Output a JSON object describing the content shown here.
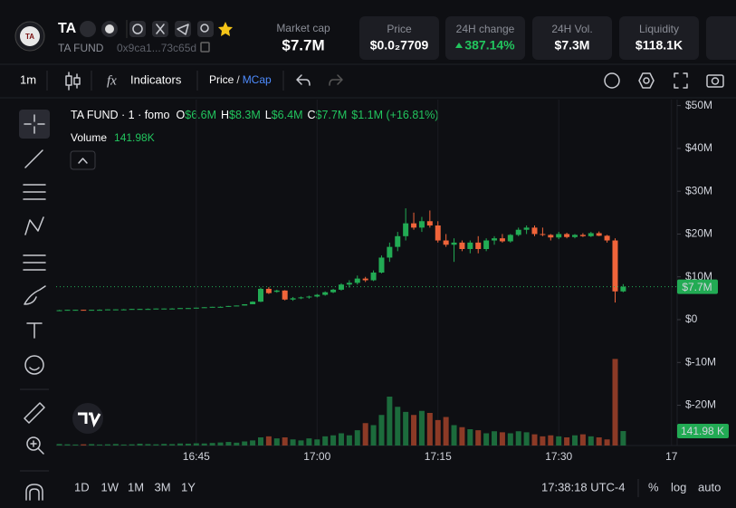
{
  "header": {
    "symbol": "TA",
    "name": "TA FUND",
    "address": "0x9ca1...73c65d"
  },
  "stats": [
    {
      "label": "Market cap",
      "value": "$7.7M"
    },
    {
      "label": "Price",
      "value": "$0.0₂7709"
    },
    {
      "label": "24H change",
      "value": "387.14%"
    },
    {
      "label": "24H Vol.",
      "value": "$7.3M"
    },
    {
      "label": "Liquidity",
      "value": "$118.1K"
    }
  ],
  "toolbar": {
    "interval": "1m",
    "indicators": "Indicators",
    "price": "Price",
    "separator": "/",
    "mcap": "MCap"
  },
  "legend": {
    "title": "TA FUND · 1 · fomo",
    "ohlc": [
      {
        "key": "O",
        "value": "$6.6M"
      },
      {
        "key": "H",
        "value": "$8.3M"
      },
      {
        "key": "L",
        "value": "$6.4M"
      },
      {
        "key": "C",
        "value": "$7.7M"
      }
    ],
    "change": "$1.1M (+16.81%)",
    "volume_label": "Volume",
    "volume_value": "141.98K"
  },
  "bottom_bar": {
    "ranges": [
      "1D",
      "1W",
      "1M",
      "3M",
      "1Y"
    ],
    "clock": "17:38:18 UTC-4",
    "percent": "%",
    "log": "log",
    "auto": "auto"
  },
  "chart_data": {
    "type": "candlestick",
    "x": [
      28,
      29,
      30,
      31,
      32,
      33,
      34,
      35,
      36,
      37,
      38,
      39,
      40,
      41,
      42,
      43,
      44,
      45,
      46,
      47,
      48,
      49,
      50,
      51,
      52,
      53,
      54,
      55,
      56,
      57,
      58,
      59,
      60,
      61,
      62,
      63,
      64,
      65,
      66,
      67,
      68,
      69,
      70,
      71,
      72,
      73,
      74,
      75,
      76,
      77,
      78,
      79,
      80,
      81,
      82,
      83,
      84,
      85,
      86,
      87,
      88,
      89,
      90,
      91,
      92,
      93,
      94,
      95,
      96,
      97,
      98
    ],
    "open": [
      2.2,
      2.2,
      2.3,
      2.3,
      2.2,
      2.3,
      2.3,
      2.4,
      2.4,
      2.4,
      2.5,
      2.5,
      2.5,
      2.6,
      2.6,
      2.6,
      2.7,
      2.7,
      2.8,
      2.9,
      3.0,
      3.0,
      3.2,
      3.3,
      3.6,
      4.2,
      7.2,
      6.5,
      6.8,
      4.7,
      5.0,
      5.2,
      5.4,
      5.8,
      6.4,
      7.0,
      8.2,
      8.6,
      9.6,
      9.2,
      11.0,
      14.5,
      17.0,
      19.5,
      22.5,
      21.5,
      23.0,
      22.0,
      18.5,
      17.5,
      18.0,
      16.5,
      18.0,
      16.5,
      18.5,
      19.0,
      18.3,
      19.8,
      21.0,
      21.5,
      20.0,
      19.8,
      19.2,
      20.0,
      19.3,
      19.8,
      19.5,
      20.2,
      19.6,
      18.5,
      6.6
    ],
    "high": [
      2.3,
      2.3,
      2.3,
      2.3,
      2.3,
      2.4,
      2.4,
      2.4,
      2.5,
      2.5,
      2.5,
      2.6,
      2.6,
      2.6,
      2.7,
      2.7,
      2.7,
      2.8,
      2.9,
      3.0,
      3.1,
      3.2,
      3.3,
      3.6,
      4.3,
      7.5,
      7.6,
      7.0,
      6.9,
      5.3,
      5.4,
      5.6,
      6.0,
      6.6,
      7.2,
      8.5,
      9.2,
      10.3,
      10.0,
      11.5,
      15.0,
      18.0,
      20.5,
      26.0,
      25.0,
      24.0,
      25.5,
      23.0,
      20.0,
      19.0,
      18.5,
      18.5,
      19.5,
      19.0,
      19.5,
      20.0,
      20.0,
      21.5,
      22.0,
      22.0,
      21.5,
      20.0,
      20.5,
      20.3,
      20.0,
      20.2,
      20.5,
      20.6,
      19.8,
      19.0,
      8.3
    ],
    "low": [
      2.2,
      2.2,
      2.2,
      2.2,
      2.2,
      2.3,
      2.3,
      2.3,
      2.4,
      2.4,
      2.4,
      2.5,
      2.5,
      2.5,
      2.6,
      2.6,
      2.6,
      2.7,
      2.8,
      2.9,
      3.0,
      3.0,
      3.2,
      3.3,
      3.6,
      4.1,
      6.0,
      6.3,
      4.5,
      4.4,
      4.8,
      4.9,
      5.2,
      5.6,
      6.2,
      6.8,
      7.5,
      8.2,
      8.8,
      9.0,
      10.8,
      13.5,
      16.0,
      18.5,
      21.0,
      20.5,
      21.5,
      18.0,
      17.0,
      13.5,
      16.0,
      15.5,
      15.5,
      16.0,
      17.5,
      18.0,
      18.0,
      19.5,
      20.0,
      19.5,
      19.5,
      18.5,
      18.8,
      19.0,
      19.0,
      19.3,
      19.3,
      19.5,
      18.0,
      4.0,
      6.4
    ],
    "close": [
      2.2,
      2.3,
      2.3,
      2.2,
      2.3,
      2.3,
      2.4,
      2.4,
      2.4,
      2.5,
      2.5,
      2.5,
      2.6,
      2.6,
      2.6,
      2.7,
      2.7,
      2.8,
      2.9,
      3.0,
      3.0,
      3.2,
      3.3,
      3.6,
      4.2,
      7.2,
      6.2,
      6.8,
      4.7,
      5.0,
      5.2,
      5.4,
      5.8,
      6.4,
      7.0,
      8.2,
      8.6,
      9.6,
      9.2,
      11.0,
      14.5,
      17.0,
      19.5,
      22.5,
      21.5,
      23.0,
      22.0,
      18.5,
      17.5,
      18.0,
      16.5,
      18.0,
      16.5,
      18.5,
      19.0,
      18.3,
      19.8,
      21.0,
      21.5,
      20.0,
      19.8,
      19.2,
      20.0,
      19.3,
      19.8,
      19.5,
      20.2,
      19.6,
      18.5,
      6.6,
      7.7
    ],
    "volume": [
      15,
      12,
      10,
      12,
      14,
      10,
      12,
      15,
      10,
      12,
      18,
      14,
      12,
      16,
      14,
      20,
      18,
      22,
      20,
      25,
      30,
      35,
      28,
      40,
      50,
      80,
      90,
      70,
      80,
      60,
      50,
      70,
      60,
      90,
      100,
      120,
      100,
      150,
      220,
      200,
      300,
      480,
      380,
      330,
      300,
      340,
      320,
      250,
      280,
      200,
      180,
      160,
      150,
      120,
      140,
      130,
      120,
      140,
      130,
      110,
      90,
      100,
      90,
      80,
      100,
      110,
      90,
      80,
      60,
      850,
      141.98
    ],
    "last_price_label": "$7.7M",
    "last_volume_label": "141.98 K",
    "xlim": [
      27.6,
      104.7
    ],
    "xticks": [
      {
        "value": 45,
        "label": "16:45"
      },
      {
        "value": 60,
        "label": "17:00"
      },
      {
        "value": 75,
        "label": "17:15"
      },
      {
        "value": 90,
        "label": "17:30"
      },
      {
        "value": 104,
        "label": "17"
      }
    ],
    "ylim": [
      -29.4,
      51.4
    ],
    "yticks": [
      {
        "value": 50,
        "label": "$50M"
      },
      {
        "value": 40,
        "label": "$40M"
      },
      {
        "value": 30,
        "label": "$30M"
      },
      {
        "value": 20,
        "label": "$20M"
      },
      {
        "value": 10,
        "label": "$10M"
      },
      {
        "value": 0,
        "label": "$0"
      },
      {
        "value": -10,
        "label": "$-10M"
      },
      {
        "value": -20,
        "label": "$-20M"
      }
    ],
    "volume_ylim": [
      0,
      1200
    ],
    "grid": "x",
    "up_color": "#22ab54",
    "down_color": "#f0643a",
    "volume_up_color": "#1c6b3c",
    "volume_down_color": "#8c3a26"
  }
}
